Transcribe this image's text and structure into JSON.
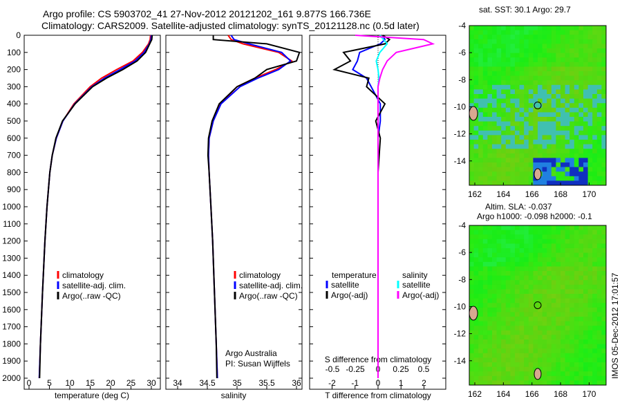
{
  "title_line1": "Argo profile: CS 5903702_41 27-Nov-2012 20121202_161 9.877S 166.736E",
  "title_line2": "Climatology: CARS2009. Satellite-adjusted climatology: synTS_20121128.nc (0.5d later)",
  "side_label": "IMOS 05-Dec-2012 17:01:57",
  "colors": {
    "climatology": "#ff0000",
    "satellite": "#0000ff",
    "argo": "#000000",
    "sal_satellite": "#00ffff",
    "sal_argo": "#ff00ff"
  },
  "chart_data": [
    {
      "type": "line",
      "xlabel": "temperature (deg C)",
      "xlim": [
        -1,
        31
      ],
      "xticks": [
        0,
        5,
        10,
        15,
        20,
        25,
        30
      ],
      "ylim": [
        2060,
        0
      ],
      "yticks": [
        0,
        100,
        200,
        300,
        400,
        500,
        600,
        700,
        800,
        900,
        1000,
        1100,
        1200,
        1300,
        1400,
        1500,
        1600,
        1700,
        1800,
        1900,
        2000
      ],
      "depth": [
        0,
        25,
        50,
        100,
        150,
        200,
        250,
        300,
        400,
        500,
        600,
        700,
        800,
        1000,
        1200,
        1500,
        1800,
        2000
      ],
      "series": [
        {
          "name": "climatology",
          "values": [
            29.8,
            29.7,
            29.3,
            27.8,
            25.5,
            21.5,
            17.8,
            15,
            11,
            8.3,
            6.7,
            5.7,
            5.1,
            4.4,
            3.9,
            3.3,
            2.8,
            2.5
          ]
        },
        {
          "name": "satellite-adj. clim.",
          "values": [
            30,
            29.9,
            29.5,
            28.2,
            26,
            22.3,
            18.5,
            15.4,
            11.2,
            8.3,
            6.7,
            5.7,
            5.1,
            4.4,
            3.9,
            3.3,
            2.8,
            2.5
          ]
        },
        {
          "name": "Argo(..raw -QC)",
          "values": [
            30.2,
            30.1,
            29.6,
            28.6,
            26.5,
            23,
            19,
            15.6,
            11.3,
            8.2,
            6.6,
            5.7,
            5.1,
            4.4,
            3.9,
            3.3,
            2.8,
            2.6
          ]
        }
      ],
      "legend": [
        "climatology",
        "satellite-adj. clim.",
        "Argo(..raw -QC)"
      ]
    },
    {
      "type": "line",
      "xlabel": "salinity",
      "xlim": [
        33.75,
        36.1
      ],
      "xticks": [
        34,
        34.5,
        35,
        35.5,
        36
      ],
      "ylim": [
        2060,
        0
      ],
      "depth": [
        0,
        25,
        50,
        100,
        150,
        200,
        250,
        300,
        400,
        500,
        600,
        700,
        800,
        1000,
        1200,
        1500,
        1800,
        2000
      ],
      "series": [
        {
          "name": "climatology",
          "values": [
            34.85,
            34.9,
            35.1,
            35.7,
            35.92,
            35.65,
            35.3,
            35.0,
            34.72,
            34.6,
            34.53,
            34.52,
            34.53,
            34.56,
            34.59,
            34.62,
            34.65,
            34.67
          ]
        },
        {
          "name": "satellite-adj. clim.",
          "values": [
            34.9,
            34.95,
            35.2,
            35.75,
            35.9,
            35.7,
            35.35,
            35.05,
            34.73,
            34.6,
            34.53,
            34.52,
            34.53,
            34.56,
            34.59,
            34.62,
            34.65,
            34.67
          ]
        },
        {
          "name": "Argo(..raw -QC)",
          "values": [
            34.6,
            34.6,
            35.5,
            36.05,
            36.0,
            35.5,
            35.3,
            35.0,
            34.7,
            34.58,
            34.52,
            34.51,
            34.53,
            34.56,
            34.59,
            34.62,
            34.65,
            34.66
          ]
        }
      ],
      "legend": [
        "climatology",
        "satellite-adj. clim.",
        "Argo(..raw -QC)"
      ],
      "annotation": [
        "Argo Australia",
        "PI: Susan Wijffels"
      ]
    },
    {
      "type": "line",
      "xlabel": "T difference from climatology",
      "x2label": "S difference from climatology",
      "xlim": [
        -3,
        3
      ],
      "xticks": [
        "-2",
        "-1",
        "0",
        "1",
        "2"
      ],
      "x2ticks": [
        "-0.5",
        "-0.25",
        "0",
        "0.25",
        "0.5"
      ],
      "ylim": [
        2060,
        0
      ],
      "depth": [
        0,
        25,
        50,
        100,
        150,
        200,
        250,
        300,
        400,
        500,
        600,
        800,
        1000,
        1500,
        2000
      ],
      "series": [
        {
          "name": "temperature satellite",
          "values": [
            0.2,
            0.3,
            0.1,
            -0.8,
            -0.9,
            -1.1,
            -0.5,
            -0.3,
            0.1,
            0.1,
            0.0,
            0.0,
            0.0,
            0.0,
            0.0
          ]
        },
        {
          "name": "temperature Argo(-adj)",
          "values": [
            0.2,
            0.5,
            0.3,
            -1.5,
            -1.2,
            -1.9,
            -0.4,
            -0.5,
            0.3,
            -0.1,
            0.1,
            0.0,
            0.0,
            0.0,
            0.0
          ]
        },
        {
          "name": "salinity satellite",
          "values": [
            0.02,
            0.06,
            0.1,
            0.02,
            -0.02,
            0.0,
            0.01,
            0.0,
            0.0,
            0.0,
            0.0,
            0.0,
            0.0,
            0.0,
            0.0
          ]
        },
        {
          "name": "salinity Argo(-adj)",
          "values": [
            -0.25,
            0.5,
            0.6,
            0.2,
            0.1,
            0.05,
            0.02,
            0.0,
            0.0,
            0.0,
            0.0,
            0.0,
            0.0,
            0.0,
            0.0
          ]
        }
      ],
      "legend_headers": [
        "temperature",
        "salinity"
      ],
      "legend": [
        "satellite",
        "Argo(-adj)",
        "satellite",
        "Argo(-adj)"
      ]
    },
    {
      "type": "heatmap",
      "title": "sat. SST: 30.1  Argo: 29.7",
      "xticks": [
        "162",
        "164",
        "166",
        "168",
        "170"
      ],
      "yticks": [
        "-4",
        "-6",
        "-8",
        "-10",
        "-12",
        "-14"
      ]
    },
    {
      "type": "heatmap",
      "title": "Altim. SLA: -0.037",
      "subtitle": "Argo h1000: -0.098 h2000: -0.1",
      "xticks": [
        "162",
        "164",
        "166",
        "168",
        "170"
      ],
      "yticks": [
        "-4",
        "-6",
        "-8",
        "-10",
        "-12",
        "-14"
      ]
    }
  ]
}
